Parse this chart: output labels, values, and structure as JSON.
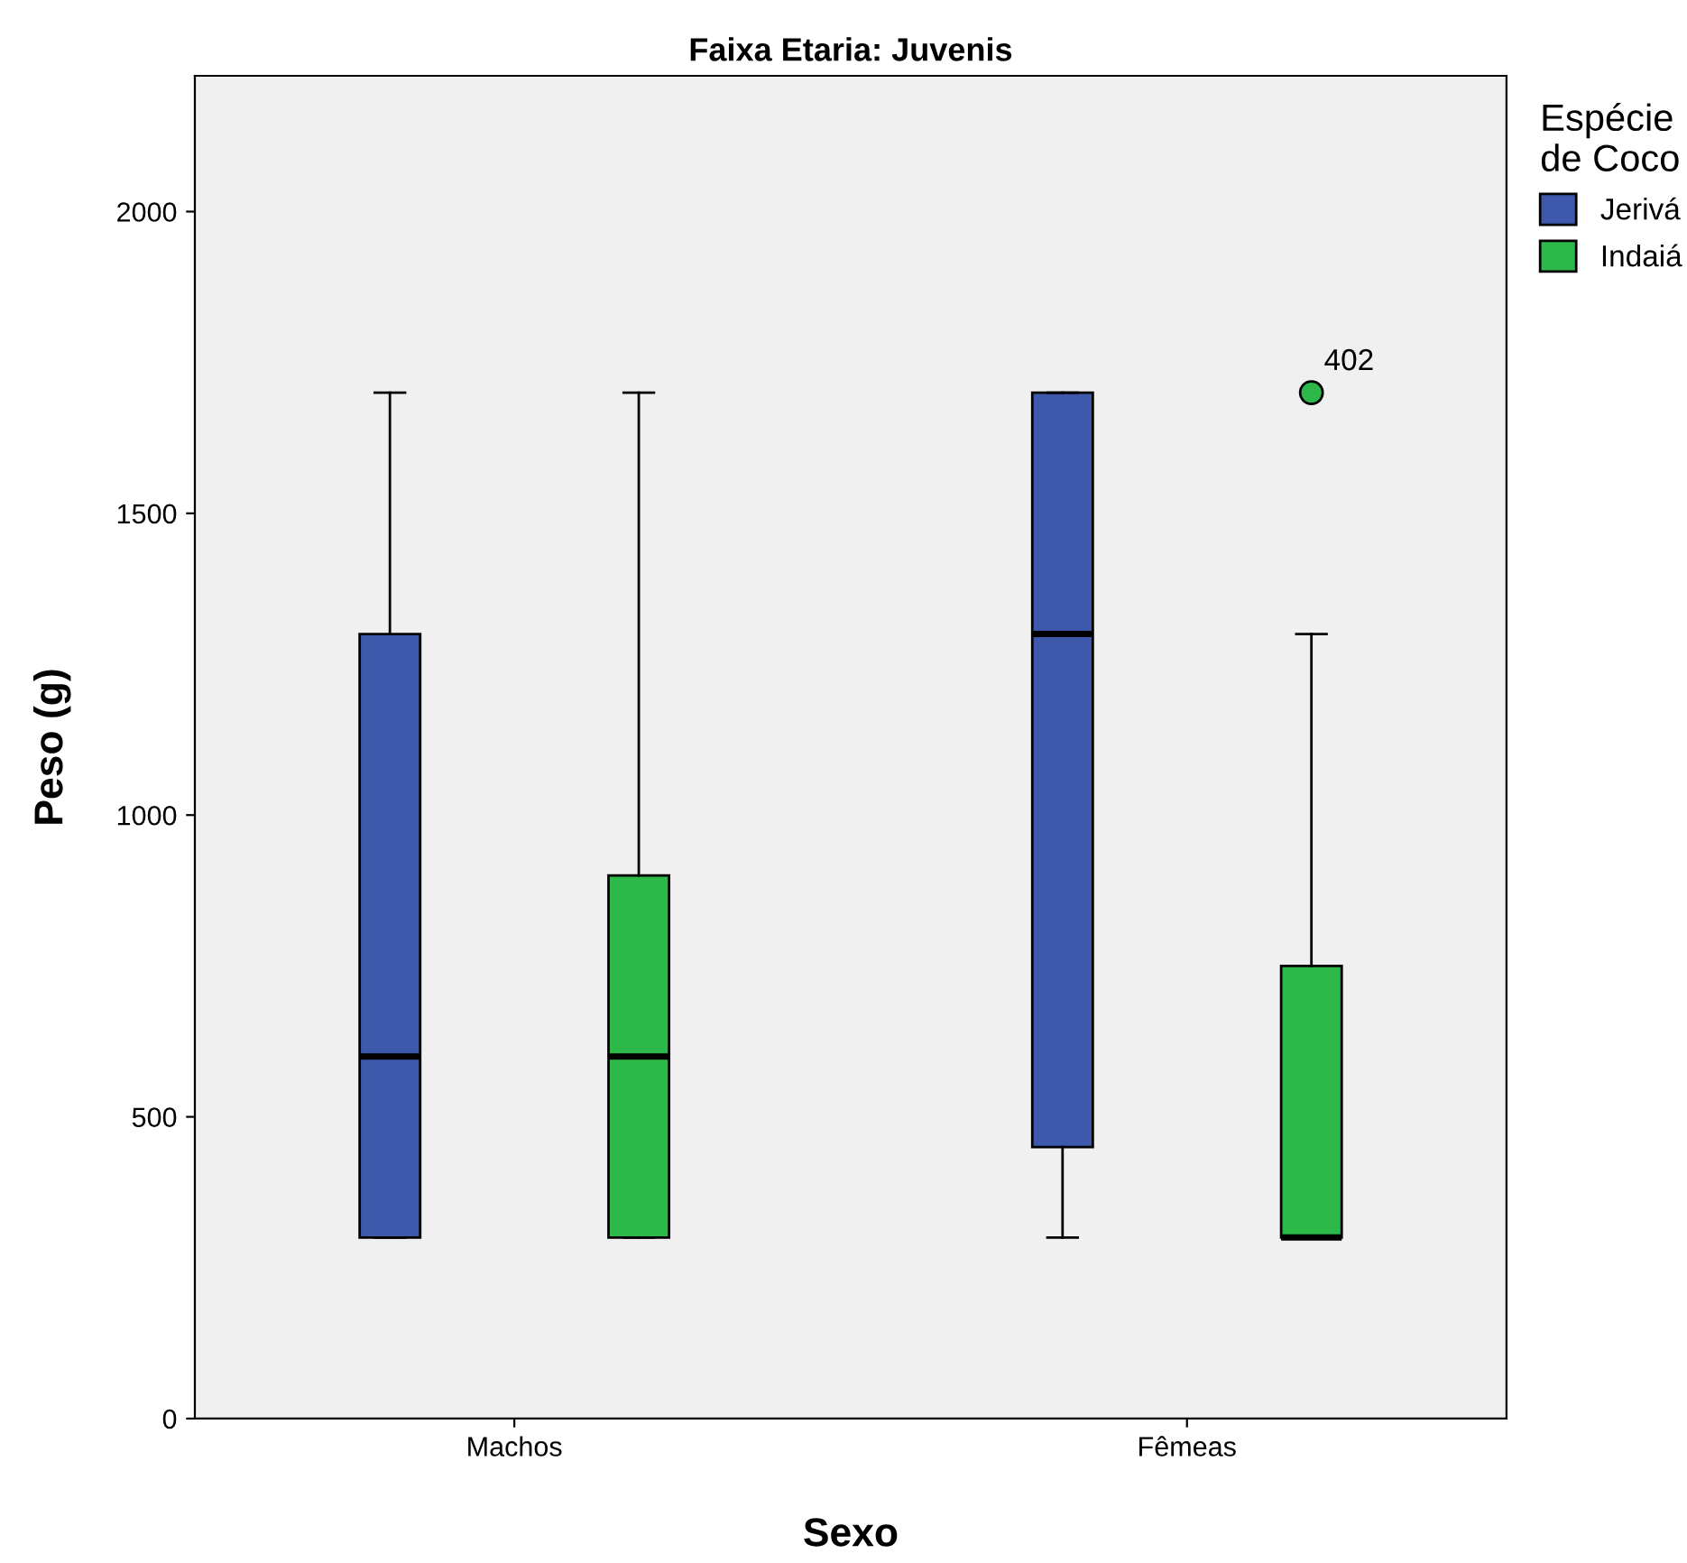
{
  "chart_data": {
    "type": "box",
    "title": "Faixa Etaria: Juvenis",
    "xlabel": "Sexo",
    "ylabel": "Peso (g)",
    "legend_title": "Espécie\nde Coco",
    "categories": [
      "Machos",
      "Fêmeas"
    ],
    "series": [
      {
        "name": "Jerivá",
        "color": "#3e58ac",
        "boxes": [
          {
            "low": 300,
            "q1": 300,
            "median": 600,
            "q3": 1300,
            "high": 1700
          },
          {
            "low": 300,
            "q1": 450,
            "median": 1300,
            "q3": 1700,
            "high": 1700
          }
        ]
      },
      {
        "name": "Indaiá",
        "color": "#2db84a",
        "boxes": [
          {
            "low": 300,
            "q1": 300,
            "median": 600,
            "q3": 900,
            "high": 1700
          },
          {
            "low": 300,
            "q1": 300,
            "median": 300,
            "q3": 750,
            "high": 1300,
            "outliers": [
              1700
            ]
          }
        ]
      }
    ],
    "annotations": [
      "402"
    ],
    "ylim": [
      0,
      2225
    ],
    "yticks": [
      0,
      500,
      1000,
      1500,
      2000
    ],
    "grid": false,
    "legend": "top right"
  }
}
